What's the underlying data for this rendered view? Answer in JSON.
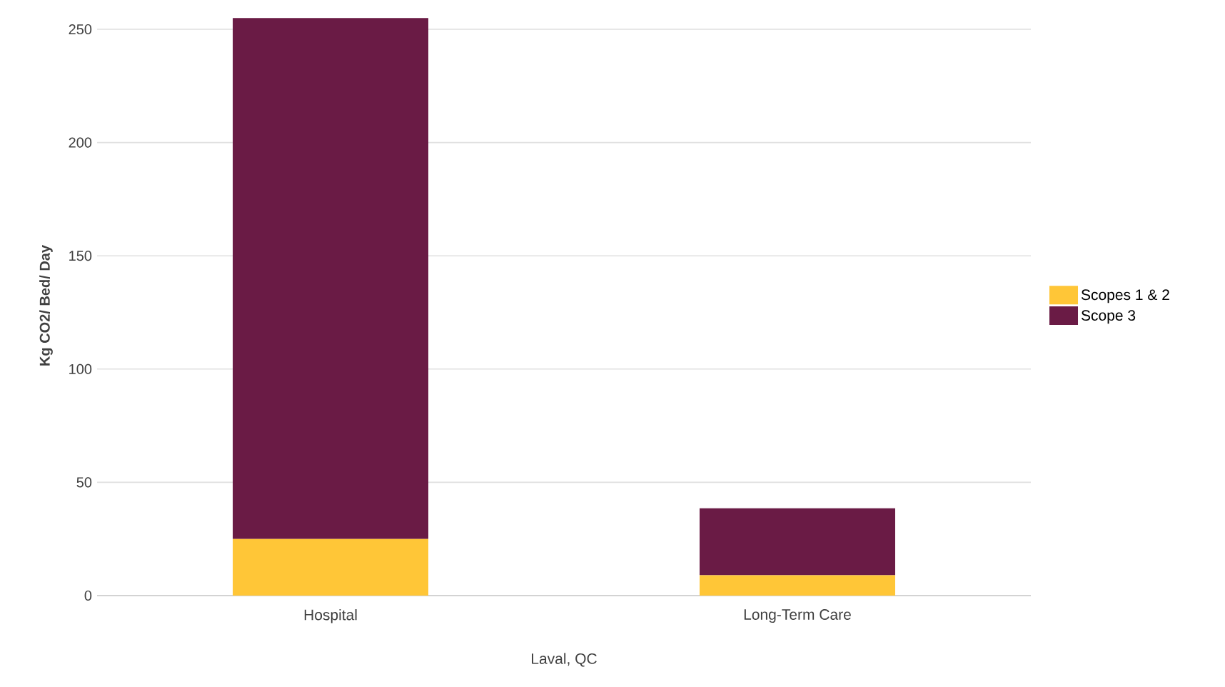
{
  "chart_data": {
    "type": "bar",
    "stacked": true,
    "xlabel": "Laval, QC",
    "ylabel": "Kg CO2/ Bed/ Day",
    "categories": [
      "Hospital",
      "Long-Term Care"
    ],
    "series": [
      {
        "name": "Scopes 1 & 2",
        "color": "#ffc637",
        "values": [
          25,
          9
        ]
      },
      {
        "name": "Scope 3",
        "color": "#6a1b45",
        "values": [
          230,
          29.5
        ]
      }
    ],
    "ylim": [
      0,
      256
    ],
    "yticks": [
      0,
      50,
      100,
      150,
      200,
      250
    ],
    "grid": "y",
    "legend": "right"
  }
}
